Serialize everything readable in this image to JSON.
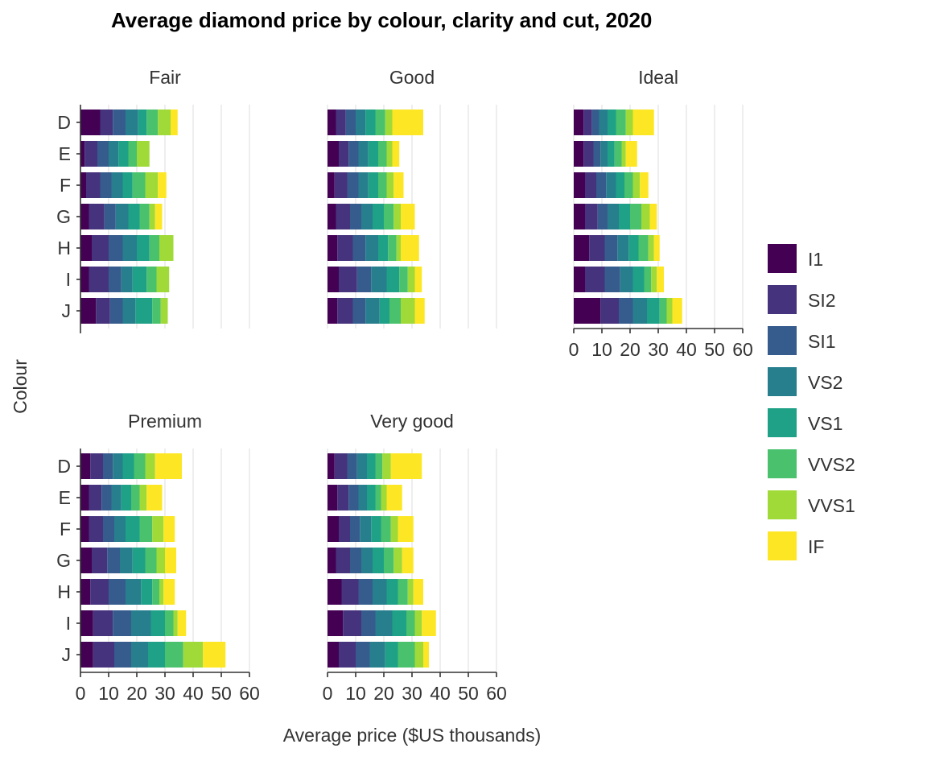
{
  "chart_data": {
    "type": "bar",
    "orientation": "horizontal",
    "stacked": true,
    "title": "Average diamond price by colour, clarity and cut, 2020",
    "xlabel": "Average price ($US thousands)",
    "ylabel": "Colour",
    "xlim": [
      0,
      60
    ],
    "xticks": [
      "0",
      "10",
      "20",
      "30",
      "40",
      "50",
      "60"
    ],
    "grid": true,
    "legend_position": "right",
    "categories": [
      "D",
      "E",
      "F",
      "G",
      "H",
      "I",
      "J"
    ],
    "clarity_levels": [
      "I1",
      "SI2",
      "SI1",
      "VS2",
      "VS1",
      "VVS2",
      "VVS1",
      "IF"
    ],
    "colors": [
      "#440154",
      "#46337e",
      "#365c8d",
      "#277f8e",
      "#1fa187",
      "#4ac16d",
      "#a0da39",
      "#fde725"
    ],
    "facets": [
      {
        "name": "Fair",
        "values": {
          "D": [
            7.0,
            4.5,
            4.5,
            4.5,
            3.0,
            4.0,
            4.5,
            2.5
          ],
          "E": [
            1.5,
            4.5,
            4.0,
            3.5,
            3.5,
            3.0,
            4.5,
            0
          ],
          "F": [
            2.0,
            5.0,
            4.0,
            4.0,
            3.5,
            4.5,
            4.5,
            3.0
          ],
          "G": [
            3.0,
            5.5,
            4.0,
            4.5,
            4.0,
            3.5,
            2.0,
            2.5
          ],
          "H": [
            4.0,
            6.0,
            5.0,
            5.0,
            4.5,
            3.5,
            5.0,
            0
          ],
          "I": [
            3.0,
            7.0,
            4.5,
            4.0,
            5.0,
            3.5,
            4.5,
            0
          ],
          "J": [
            5.5,
            5.0,
            4.5,
            4.5,
            6.0,
            3.0,
            2.5,
            0
          ]
        }
      },
      {
        "name": "Good",
        "values": {
          "D": [
            3.0,
            3.5,
            3.5,
            3.5,
            3.5,
            3.5,
            2.5,
            11.0
          ],
          "E": [
            4.0,
            3.5,
            3.5,
            3.5,
            3.5,
            3.0,
            2.0,
            2.5
          ],
          "F": [
            2.5,
            4.5,
            4.0,
            3.5,
            3.5,
            3.0,
            2.5,
            3.5
          ],
          "G": [
            3.0,
            5.0,
            4.0,
            4.0,
            4.0,
            3.5,
            2.5,
            5.0
          ],
          "H": [
            3.5,
            5.5,
            4.5,
            4.5,
            3.5,
            3.0,
            1.5,
            6.5
          ],
          "I": [
            4.0,
            6.5,
            5.0,
            5.5,
            4.5,
            3.0,
            2.5,
            2.5
          ],
          "J": [
            3.5,
            5.5,
            4.5,
            5.0,
            3.5,
            4.0,
            5.0,
            3.5
          ]
        }
      },
      {
        "name": "Ideal",
        "values": {
          "D": [
            3.5,
            3.0,
            2.5,
            3.0,
            3.0,
            3.5,
            2.5,
            7.5
          ],
          "E": [
            3.5,
            3.5,
            2.5,
            2.5,
            2.5,
            2.5,
            1.5,
            4.0
          ],
          "F": [
            4.0,
            4.0,
            3.5,
            3.5,
            3.0,
            3.0,
            2.5,
            3.0
          ],
          "G": [
            4.0,
            4.5,
            3.5,
            4.0,
            4.0,
            4.0,
            3.0,
            2.5
          ],
          "H": [
            5.5,
            5.5,
            4.5,
            4.0,
            3.5,
            3.5,
            2.0,
            2.0
          ],
          "I": [
            4.0,
            7.0,
            5.5,
            4.5,
            4.0,
            2.5,
            2.0,
            2.5
          ],
          "J": [
            9.5,
            6.5,
            5.0,
            5.0,
            4.5,
            2.5,
            2.0,
            3.5
          ]
        }
      },
      {
        "name": "Premium",
        "values": {
          "D": [
            3.5,
            4.5,
            3.5,
            3.5,
            4.0,
            4.0,
            3.5,
            9.5
          ],
          "E": [
            3.0,
            4.5,
            3.5,
            3.5,
            3.5,
            3.0,
            2.5,
            5.5
          ],
          "F": [
            3.0,
            5.0,
            4.0,
            4.0,
            5.0,
            4.5,
            4.0,
            4.0
          ],
          "G": [
            4.0,
            5.5,
            4.5,
            4.5,
            4.5,
            4.0,
            3.0,
            4.0
          ],
          "H": [
            3.5,
            6.5,
            6.0,
            5.5,
            4.0,
            2.5,
            1.5,
            4.0
          ],
          "I": [
            4.5,
            7.0,
            6.5,
            7.0,
            5.0,
            3.0,
            1.5,
            3.0
          ],
          "J": [
            4.5,
            7.5,
            6.0,
            6.0,
            6.0,
            6.5,
            7.0,
            8.0
          ]
        }
      },
      {
        "name": "Very good",
        "values": {
          "D": [
            2.5,
            4.5,
            3.5,
            3.5,
            3.0,
            2.5,
            3.0,
            11.0
          ],
          "E": [
            3.5,
            4.0,
            3.5,
            3.0,
            3.0,
            2.0,
            2.0,
            5.5
          ],
          "F": [
            4.0,
            4.0,
            3.5,
            4.0,
            3.5,
            3.5,
            2.5,
            5.5
          ],
          "G": [
            3.0,
            5.0,
            4.0,
            4.0,
            4.0,
            3.5,
            3.0,
            4.0
          ],
          "H": [
            5.0,
            6.0,
            5.0,
            5.0,
            4.0,
            3.5,
            2.0,
            3.5
          ],
          "I": [
            5.5,
            6.5,
            5.0,
            6.0,
            5.0,
            3.0,
            2.5,
            5.0
          ],
          "J": [
            4.0,
            6.0,
            5.0,
            5.5,
            4.5,
            6.0,
            3.0,
            2.0
          ]
        }
      }
    ]
  }
}
